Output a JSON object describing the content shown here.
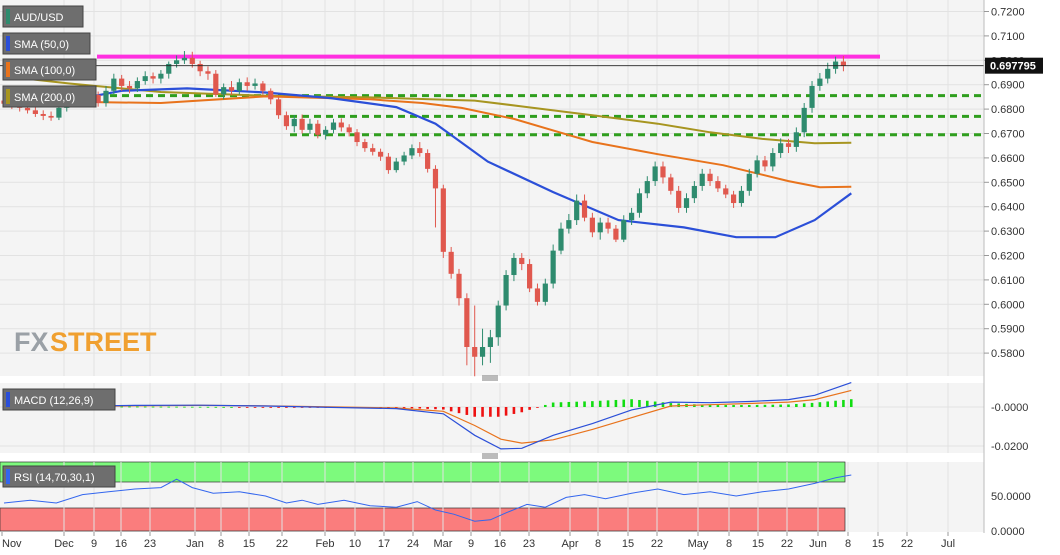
{
  "legends": {
    "pair": "AUD/USD",
    "sma50": "SMA (50,0)",
    "sma100": "SMA (100,0)",
    "sma200": "SMA (200,0)",
    "macd": "MACD (12,26,9)",
    "rsi": "RSI (14,70,30,1)"
  },
  "logo": {
    "fx": "FX",
    "street": "STREET"
  },
  "colors": {
    "up": "#2e8b6e",
    "down": "#e0584e",
    "sma50": "#2b4fd8",
    "sma100": "#e8731c",
    "sma200": "#a79520",
    "resistance": "#ff2fe0",
    "support": "#2f9e1e",
    "rsi_over": "#7dfa7d",
    "rsi_under": "#fa7d7d",
    "rsi_line": "#3366ee",
    "macd_line": "#2b4fd8",
    "signal_line": "#e8731c",
    "hist_up": "#11dd11",
    "hist_down": "#ee1111"
  },
  "price_label": "0.697795",
  "chart_data": {
    "type": "candlestick",
    "price_ticks": [
      "0.7200",
      "0.7100",
      "0.7000",
      "0.6900",
      "0.6800",
      "0.6700",
      "0.6600",
      "0.6500",
      "0.6400",
      "0.6300",
      "0.6200",
      "0.6100",
      "0.6000",
      "0.5900",
      "0.5800"
    ],
    "macd_ticks": [
      "-0.0000",
      "-0.0200"
    ],
    "rsi_ticks": [
      "50.0000",
      "0.0000"
    ],
    "x_ticks": [
      "Nov",
      "Dec",
      "9",
      "16",
      "23",
      "Jan",
      "8",
      "15",
      "22",
      "Feb",
      "10",
      "17",
      "24",
      "Mar",
      "9",
      "16",
      "23",
      "Apr",
      "8",
      "15",
      "22",
      "May",
      "8",
      "15",
      "22",
      "Jun",
      "8",
      "15",
      "22",
      "Jul"
    ],
    "current_price": 0.697795,
    "resistance": 0.7015,
    "supports": [
      0.6855,
      0.677,
      0.6695
    ],
    "rsi_levels": [
      70,
      30
    ],
    "sma200": [
      [
        0,
        0.6935
      ],
      [
        25,
        0.6905
      ],
      [
        60,
        0.687
      ],
      [
        100,
        0.6855
      ],
      [
        140,
        0.6848
      ],
      [
        180,
        0.6835
      ],
      [
        199,
        0.681
      ],
      [
        225,
        0.6775
      ],
      [
        250,
        0.674
      ],
      [
        270,
        0.6705
      ],
      [
        290,
        0.6678
      ],
      [
        310,
        0.666
      ],
      [
        324,
        0.6662
      ]
    ],
    "sma100": [
      [
        0,
        0.6865
      ],
      [
        25,
        0.683
      ],
      [
        60,
        0.6825
      ],
      [
        100,
        0.6852
      ],
      [
        140,
        0.684
      ],
      [
        160,
        0.6825
      ],
      [
        175,
        0.6805
      ],
      [
        195,
        0.676
      ],
      [
        225,
        0.6665
      ],
      [
        250,
        0.6615
      ],
      [
        275,
        0.657
      ],
      [
        300,
        0.6505
      ],
      [
        312,
        0.648
      ],
      [
        324,
        0.6482
      ]
    ],
    "sma50": [
      [
        0,
        0.682
      ],
      [
        25,
        0.6835
      ],
      [
        45,
        0.6875
      ],
      [
        70,
        0.6885
      ],
      [
        100,
        0.6868
      ],
      [
        125,
        0.6845
      ],
      [
        150,
        0.6808
      ],
      [
        165,
        0.674
      ],
      [
        185,
        0.6585
      ],
      [
        210,
        0.646
      ],
      [
        235,
        0.6345
      ],
      [
        260,
        0.6315
      ],
      [
        280,
        0.6275
      ],
      [
        295,
        0.6275
      ],
      [
        310,
        0.6345
      ],
      [
        324,
        0.6455
      ]
    ],
    "candles": [
      [
        0,
        0.6835,
        0.6822,
        0.6852,
        0.6808
      ],
      [
        3,
        0.6822,
        0.6815,
        0.684,
        0.68
      ],
      [
        6,
        0.6815,
        0.6805,
        0.683,
        0.679
      ],
      [
        9,
        0.6805,
        0.6795,
        0.682,
        0.6782
      ],
      [
        12,
        0.6795,
        0.678,
        0.681,
        0.6768
      ],
      [
        15,
        0.678,
        0.6772,
        0.6795,
        0.6755
      ],
      [
        18,
        0.6772,
        0.6765,
        0.679,
        0.6752
      ],
      [
        21,
        0.6765,
        0.6805,
        0.6825,
        0.6755
      ],
      [
        24,
        0.6805,
        0.6835,
        0.685,
        0.679
      ],
      [
        27,
        0.6835,
        0.6845,
        0.6865,
        0.682
      ],
      [
        30,
        0.6845,
        0.687,
        0.6885,
        0.6828
      ],
      [
        33,
        0.687,
        0.6858,
        0.6888,
        0.6835
      ],
      [
        36,
        0.6858,
        0.6825,
        0.6872,
        0.681
      ],
      [
        39,
        0.6825,
        0.6875,
        0.6895,
        0.681
      ],
      [
        42,
        0.6875,
        0.6925,
        0.6945,
        0.6862
      ],
      [
        45,
        0.6925,
        0.6895,
        0.694,
        0.6875
      ],
      [
        48,
        0.6895,
        0.6885,
        0.6915,
        0.6865
      ],
      [
        51,
        0.6885,
        0.6915,
        0.693,
        0.687
      ],
      [
        54,
        0.6915,
        0.6935,
        0.6955,
        0.69
      ],
      [
        57,
        0.6935,
        0.6925,
        0.695,
        0.6905
      ],
      [
        60,
        0.6925,
        0.6945,
        0.696,
        0.6905
      ],
      [
        63,
        0.6945,
        0.6985,
        0.6995,
        0.6925
      ],
      [
        66,
        0.6985,
        0.7,
        0.702,
        0.697
      ],
      [
        69,
        0.7,
        0.701,
        0.7038,
        0.6985
      ],
      [
        72,
        0.701,
        0.6985,
        0.7035,
        0.697
      ],
      [
        75,
        0.6985,
        0.6955,
        0.6998,
        0.6935
      ],
      [
        78,
        0.6955,
        0.6945,
        0.6975,
        0.692
      ],
      [
        81,
        0.6945,
        0.686,
        0.696,
        0.685
      ],
      [
        84,
        0.686,
        0.689,
        0.6905,
        0.684
      ],
      [
        87,
        0.689,
        0.6875,
        0.6915,
        0.6858
      ],
      [
        90,
        0.6875,
        0.691,
        0.6925,
        0.686
      ],
      [
        93,
        0.691,
        0.6895,
        0.693,
        0.6875
      ],
      [
        96,
        0.6895,
        0.6905,
        0.6925,
        0.688
      ],
      [
        99,
        0.6905,
        0.6875,
        0.6915,
        0.686
      ],
      [
        102,
        0.6875,
        0.684,
        0.6885,
        0.682
      ],
      [
        105,
        0.684,
        0.6775,
        0.685,
        0.676
      ],
      [
        108,
        0.6775,
        0.673,
        0.679,
        0.6715
      ],
      [
        111,
        0.673,
        0.676,
        0.6775,
        0.6705
      ],
      [
        114,
        0.676,
        0.6715,
        0.6778,
        0.67
      ],
      [
        117,
        0.6715,
        0.674,
        0.676,
        0.6698
      ],
      [
        120,
        0.674,
        0.6695,
        0.6755,
        0.668
      ],
      [
        123,
        0.6695,
        0.6715,
        0.673,
        0.6675
      ],
      [
        126,
        0.6715,
        0.6745,
        0.676,
        0.67
      ],
      [
        129,
        0.6745,
        0.6725,
        0.6762,
        0.6708
      ],
      [
        132,
        0.6725,
        0.6705,
        0.6738,
        0.6688
      ],
      [
        135,
        0.6705,
        0.6665,
        0.6718,
        0.6648
      ],
      [
        138,
        0.6665,
        0.664,
        0.6678,
        0.6625
      ],
      [
        141,
        0.664,
        0.6625,
        0.6658,
        0.661
      ],
      [
        144,
        0.6625,
        0.6605,
        0.6638,
        0.6588
      ],
      [
        147,
        0.6605,
        0.655,
        0.662,
        0.6535
      ],
      [
        150,
        0.655,
        0.6585,
        0.66,
        0.654
      ],
      [
        153,
        0.6585,
        0.661,
        0.6625,
        0.657
      ],
      [
        156,
        0.661,
        0.664,
        0.6655,
        0.6595
      ],
      [
        159,
        0.664,
        0.662,
        0.6665,
        0.6605
      ],
      [
        162,
        0.662,
        0.6555,
        0.6635,
        0.654
      ],
      [
        165,
        0.6555,
        0.6475,
        0.657,
        0.6315
      ],
      [
        168,
        0.6475,
        0.6215,
        0.649,
        0.619
      ],
      [
        171,
        0.6215,
        0.6125,
        0.6235,
        0.6105
      ],
      [
        174,
        0.6125,
        0.6025,
        0.6145,
        0.5995
      ],
      [
        177,
        0.6025,
        0.5825,
        0.6045,
        0.575
      ],
      [
        180,
        0.5825,
        0.5785,
        0.5995,
        0.5705
      ],
      [
        183,
        0.5785,
        0.5825,
        0.59,
        0.575
      ],
      [
        186,
        0.5825,
        0.5865,
        0.5895,
        0.576
      ],
      [
        189,
        0.5865,
        0.5995,
        0.6015,
        0.583
      ],
      [
        192,
        0.5995,
        0.612,
        0.614,
        0.5975
      ],
      [
        195,
        0.612,
        0.619,
        0.621,
        0.6095
      ],
      [
        198,
        0.619,
        0.6165,
        0.621,
        0.614
      ],
      [
        201,
        0.6165,
        0.6065,
        0.6185,
        0.605
      ],
      [
        204,
        0.6065,
        0.601,
        0.6085,
        0.5995
      ],
      [
        207,
        0.601,
        0.6085,
        0.6105,
        0.5995
      ],
      [
        210,
        0.6085,
        0.622,
        0.6245,
        0.6065
      ],
      [
        213,
        0.622,
        0.631,
        0.6335,
        0.6205
      ],
      [
        216,
        0.631,
        0.6345,
        0.637,
        0.629
      ],
      [
        219,
        0.6345,
        0.6425,
        0.645,
        0.6325
      ],
      [
        222,
        0.6425,
        0.6355,
        0.645,
        0.634
      ],
      [
        225,
        0.6355,
        0.6295,
        0.6375,
        0.6275
      ],
      [
        228,
        0.6295,
        0.6335,
        0.6355,
        0.6265
      ],
      [
        231,
        0.6335,
        0.631,
        0.6355,
        0.629
      ],
      [
        234,
        0.631,
        0.6265,
        0.6325,
        0.6255
      ],
      [
        237,
        0.6265,
        0.6345,
        0.6365,
        0.6255
      ],
      [
        240,
        0.6345,
        0.6375,
        0.6395,
        0.6325
      ],
      [
        243,
        0.6375,
        0.6455,
        0.6475,
        0.6355
      ],
      [
        246,
        0.6455,
        0.6505,
        0.6525,
        0.6435
      ],
      [
        249,
        0.6505,
        0.6565,
        0.6585,
        0.6485
      ],
      [
        252,
        0.6565,
        0.652,
        0.6585,
        0.6495
      ],
      [
        255,
        0.652,
        0.6465,
        0.6535,
        0.645
      ],
      [
        258,
        0.6465,
        0.6395,
        0.6485,
        0.6375
      ],
      [
        261,
        0.6395,
        0.6435,
        0.6455,
        0.6375
      ],
      [
        264,
        0.6435,
        0.6485,
        0.6505,
        0.6415
      ],
      [
        267,
        0.6485,
        0.6535,
        0.6555,
        0.6465
      ],
      [
        270,
        0.6535,
        0.6505,
        0.6555,
        0.6485
      ],
      [
        273,
        0.6505,
        0.6475,
        0.6525,
        0.646
      ],
      [
        276,
        0.6475,
        0.645,
        0.649,
        0.6435
      ],
      [
        279,
        0.645,
        0.6415,
        0.6465,
        0.6395
      ],
      [
        282,
        0.6415,
        0.6465,
        0.6485,
        0.64
      ],
      [
        285,
        0.6465,
        0.6535,
        0.6555,
        0.6445
      ],
      [
        288,
        0.6535,
        0.659,
        0.661,
        0.652
      ],
      [
        291,
        0.659,
        0.6565,
        0.6608,
        0.6545
      ],
      [
        294,
        0.6565,
        0.662,
        0.664,
        0.6545
      ],
      [
        297,
        0.662,
        0.666,
        0.668,
        0.66
      ],
      [
        300,
        0.666,
        0.6645,
        0.6678,
        0.662
      ],
      [
        303,
        0.6645,
        0.6705,
        0.6725,
        0.6625
      ],
      [
        306,
        0.6705,
        0.6805,
        0.6825,
        0.6685
      ],
      [
        309,
        0.6805,
        0.6895,
        0.6915,
        0.6785
      ],
      [
        312,
        0.6895,
        0.6925,
        0.6948,
        0.6875
      ],
      [
        315,
        0.6925,
        0.6965,
        0.699,
        0.6905
      ],
      [
        318,
        0.6965,
        0.6995,
        0.7015,
        0.6945
      ],
      [
        321,
        0.6995,
        0.6978,
        0.7018,
        0.6955
      ]
    ],
    "macd": [
      [
        0,
        -0.0002
      ],
      [
        25,
        0.0004
      ],
      [
        50,
        0.0008
      ],
      [
        75,
        0.0009
      ],
      [
        100,
        0.0005
      ],
      [
        125,
        -0.0002
      ],
      [
        150,
        -0.0008
      ],
      [
        168,
        -0.0035
      ],
      [
        180,
        -0.0145
      ],
      [
        190,
        -0.0215
      ],
      [
        198,
        -0.0212
      ],
      [
        210,
        -0.0145
      ],
      [
        225,
        -0.0085
      ],
      [
        240,
        -0.0015
      ],
      [
        255,
        0.0025
      ],
      [
        270,
        0.0022
      ],
      [
        285,
        0.0028
      ],
      [
        300,
        0.0038
      ],
      [
        310,
        0.006
      ],
      [
        324,
        0.0125
      ]
    ],
    "signal": [
      [
        0,
        -0.0004
      ],
      [
        25,
        0.0002
      ],
      [
        50,
        0.0006
      ],
      [
        75,
        0.0008
      ],
      [
        100,
        0.0006
      ],
      [
        125,
        0.0001
      ],
      [
        150,
        -0.0005
      ],
      [
        168,
        -0.0022
      ],
      [
        180,
        -0.0095
      ],
      [
        190,
        -0.0165
      ],
      [
        198,
        -0.0185
      ],
      [
        210,
        -0.0168
      ],
      [
        225,
        -0.0115
      ],
      [
        240,
        -0.0055
      ],
      [
        255,
        0.0005
      ],
      [
        270,
        0.0012
      ],
      [
        285,
        0.0018
      ],
      [
        300,
        0.0025
      ],
      [
        310,
        0.0038
      ],
      [
        324,
        0.0085
      ]
    ],
    "rsi": [
      [
        0,
        40
      ],
      [
        10,
        44
      ],
      [
        20,
        40
      ],
      [
        30,
        52
      ],
      [
        40,
        56
      ],
      [
        50,
        60
      ],
      [
        60,
        62
      ],
      [
        66,
        74
      ],
      [
        72,
        62
      ],
      [
        80,
        54
      ],
      [
        90,
        56
      ],
      [
        100,
        50
      ],
      [
        108,
        40
      ],
      [
        114,
        44
      ],
      [
        120,
        38
      ],
      [
        130,
        44
      ],
      [
        140,
        36
      ],
      [
        150,
        34
      ],
      [
        158,
        42
      ],
      [
        165,
        30
      ],
      [
        172,
        24
      ],
      [
        180,
        14
      ],
      [
        186,
        16
      ],
      [
        192,
        26
      ],
      [
        200,
        38
      ],
      [
        207,
        34
      ],
      [
        215,
        48
      ],
      [
        222,
        52
      ],
      [
        230,
        46
      ],
      [
        240,
        54
      ],
      [
        250,
        60
      ],
      [
        260,
        52
      ],
      [
        270,
        56
      ],
      [
        280,
        50
      ],
      [
        290,
        56
      ],
      [
        300,
        60
      ],
      [
        310,
        68
      ],
      [
        318,
        76
      ],
      [
        324,
        80
      ]
    ]
  }
}
